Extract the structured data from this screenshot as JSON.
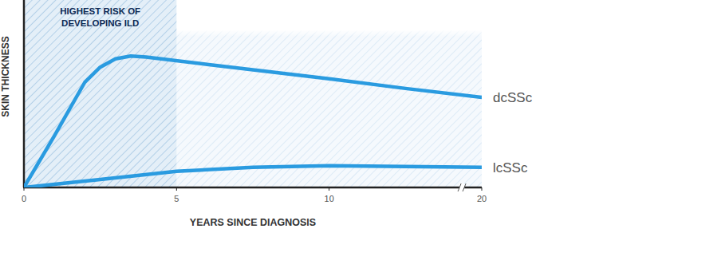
{
  "chart_data": {
    "type": "line",
    "x_label": "YEARS SINCE DIAGNOSIS",
    "y_label": "SKIN THICKNESS",
    "xlim": [
      0,
      20
    ],
    "xticks": [
      0,
      5,
      10,
      20
    ],
    "ylim": [
      0,
      100
    ],
    "yticks": [],
    "grid": false,
    "tick_labels": "x",
    "annotations": [
      {
        "text": [
          "HIGHEST RISK OF",
          "DEVELOPING ILD"
        ],
        "x": [
          0,
          5
        ]
      }
    ],
    "series": [
      {
        "name": "dcSSc",
        "color": "#2a9be0",
        "line_style": "solid",
        "x": [
          0,
          1,
          2,
          2.5,
          3,
          3.5,
          4,
          6,
          10,
          15,
          20
        ],
        "values": [
          0,
          28,
          57,
          65,
          69.5,
          71,
          70.5,
          66.5,
          58.7,
          53.5,
          48.7
        ]
      },
      {
        "name": "lcSSc",
        "color": "#2a9be0",
        "line_style": "solid",
        "x": [
          0,
          2.5,
          5,
          7.5,
          10,
          15,
          20
        ],
        "values": [
          0,
          4.3,
          8.7,
          10.9,
          11.7,
          11.3,
          10.9
        ]
      }
    ]
  }
}
